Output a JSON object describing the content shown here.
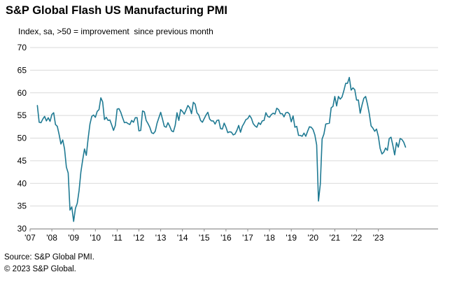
{
  "title": "S&P Global Flash US Manufacturing PMI",
  "subtitle": "Index, sa, >50 = improvement  since previous month",
  "source_line1": "Source: S&P Global PMI.",
  "source_line2": "© 2023 S&P Global.",
  "colors": {
    "line": "#1f7a93",
    "grid": "#d9d9d9",
    "axis": "#8c8c8c"
  },
  "chart_data": {
    "type": "line",
    "title": "S&P Global Flash US Manufacturing PMI",
    "ylim": [
      30,
      70
    ],
    "y_ticks": [
      30,
      35,
      40,
      45,
      50,
      55,
      60,
      65,
      70
    ],
    "x_tick_labels": [
      "'07",
      "'08",
      "'09",
      "'10",
      "'11",
      "'12",
      "'13",
      "'14",
      "'15",
      "'16",
      "'17",
      "'18",
      "'19",
      "'20",
      "'21",
      "'22",
      "'23"
    ],
    "grid": "horizontal",
    "x_start": "2007-05",
    "x_end": "2023-08",
    "series": [
      {
        "values": [
          57.2,
          53.5,
          53.4,
          54.2,
          54.8,
          53.8,
          54.5,
          53.7,
          55.2,
          55.6,
          53,
          52.6,
          50.8,
          48.7,
          49.6,
          47.6,
          43.6,
          42.3,
          34.1,
          34.8,
          31.6,
          34.5,
          35.6,
          38.4,
          42.5,
          45.2,
          47.6,
          46.2,
          49.9,
          53.1,
          54.8,
          55.1,
          54.6,
          55.9,
          56.3,
          58.9,
          58,
          54.1,
          54.6,
          53.9,
          54,
          52.9,
          51.7,
          52.8,
          56.4,
          56.5,
          55.7,
          54.5,
          53.4,
          53.5,
          53.2,
          53,
          53.9,
          53.5,
          54.5,
          54.5,
          51.6,
          51.7,
          56,
          55.8,
          53.9,
          53.2,
          52.4,
          51.2,
          51,
          51.5,
          53.3,
          54.5,
          55.7,
          54.2,
          52.6,
          52.4,
          53.4,
          52.6,
          51.6,
          51.4,
          52.8,
          55.6,
          53.9,
          56.3,
          55.9,
          55.3,
          56.2,
          57.2,
          56.7,
          55.4,
          57.9,
          57.5,
          55.6,
          55.1,
          53.9,
          53.5,
          54.3,
          55.1,
          55.7,
          54.2,
          53.8,
          53.8,
          53.1,
          53.9,
          54,
          52.1,
          52,
          53.3,
          52.4,
          51.2,
          51.4,
          51.3,
          50.7,
          50.9,
          51.7,
          52.8,
          51.3,
          52.6,
          53.3,
          54.1,
          54.3,
          55,
          54.4,
          53.2,
          52.7,
          52.4,
          53.4,
          53,
          53.8,
          53.9,
          55.6,
          54.8,
          54.6,
          55.2,
          55.5,
          55.3,
          56.6,
          56.3,
          55.4,
          55.4,
          54.7,
          55.6,
          55.7,
          55.3,
          53.6,
          54.9,
          52.4,
          52.6,
          50.6,
          50.6,
          50.4,
          51.1,
          50.4,
          51.5,
          52.5,
          52.4,
          51.9,
          50.7,
          48.5,
          36.1,
          39.8,
          49.8,
          50.9,
          53.1,
          53.2,
          53.3,
          56.7,
          57,
          59.2,
          57.1,
          59.2,
          58.6,
          59.1,
          60.5,
          62.1,
          62.1,
          63.4,
          60.6,
          61.1,
          60.7,
          58.4,
          58.4,
          55.5,
          57.3,
          58.8,
          59.2,
          57.5,
          55.4,
          52.7,
          52.2,
          51.5,
          52,
          50.4,
          47.7,
          46.5,
          46.9,
          47.8,
          47.3,
          49.9,
          50.2,
          48.4,
          46.3,
          49,
          48,
          49.9,
          49.7,
          49.1,
          48.0
        ]
      }
    ]
  }
}
